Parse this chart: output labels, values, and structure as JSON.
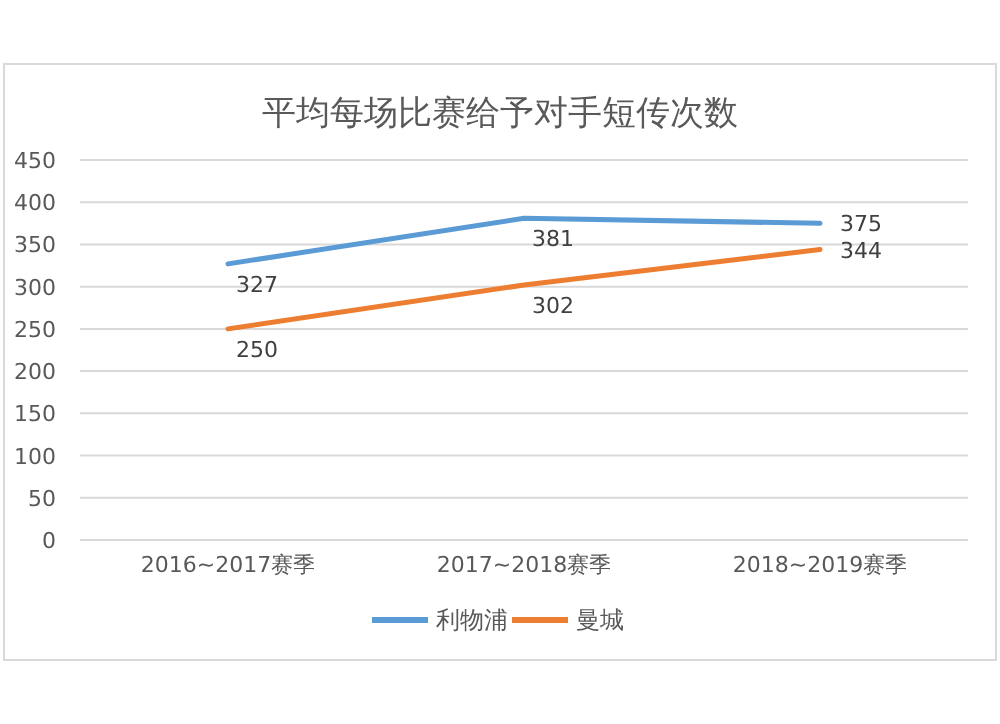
{
  "chart_data": {
    "type": "line",
    "title": "平均每场比赛给予对手短传次数",
    "categories": [
      "2016~2017赛季",
      "2017~2018赛季",
      "2018~2019赛季"
    ],
    "series": [
      {
        "name": "利物浦",
        "color": "#5b9bd5",
        "values": [
          327,
          381,
          375
        ]
      },
      {
        "name": "曼城",
        "color": "#ed7d31",
        "values": [
          250,
          302,
          344
        ]
      }
    ],
    "ylim": [
      0,
      450
    ],
    "yticks": [
      0,
      50,
      100,
      150,
      200,
      250,
      300,
      350,
      400,
      450
    ],
    "grid": "y",
    "legend": "bottom",
    "data_labels": true,
    "marker": "none",
    "line_style": "solid"
  }
}
